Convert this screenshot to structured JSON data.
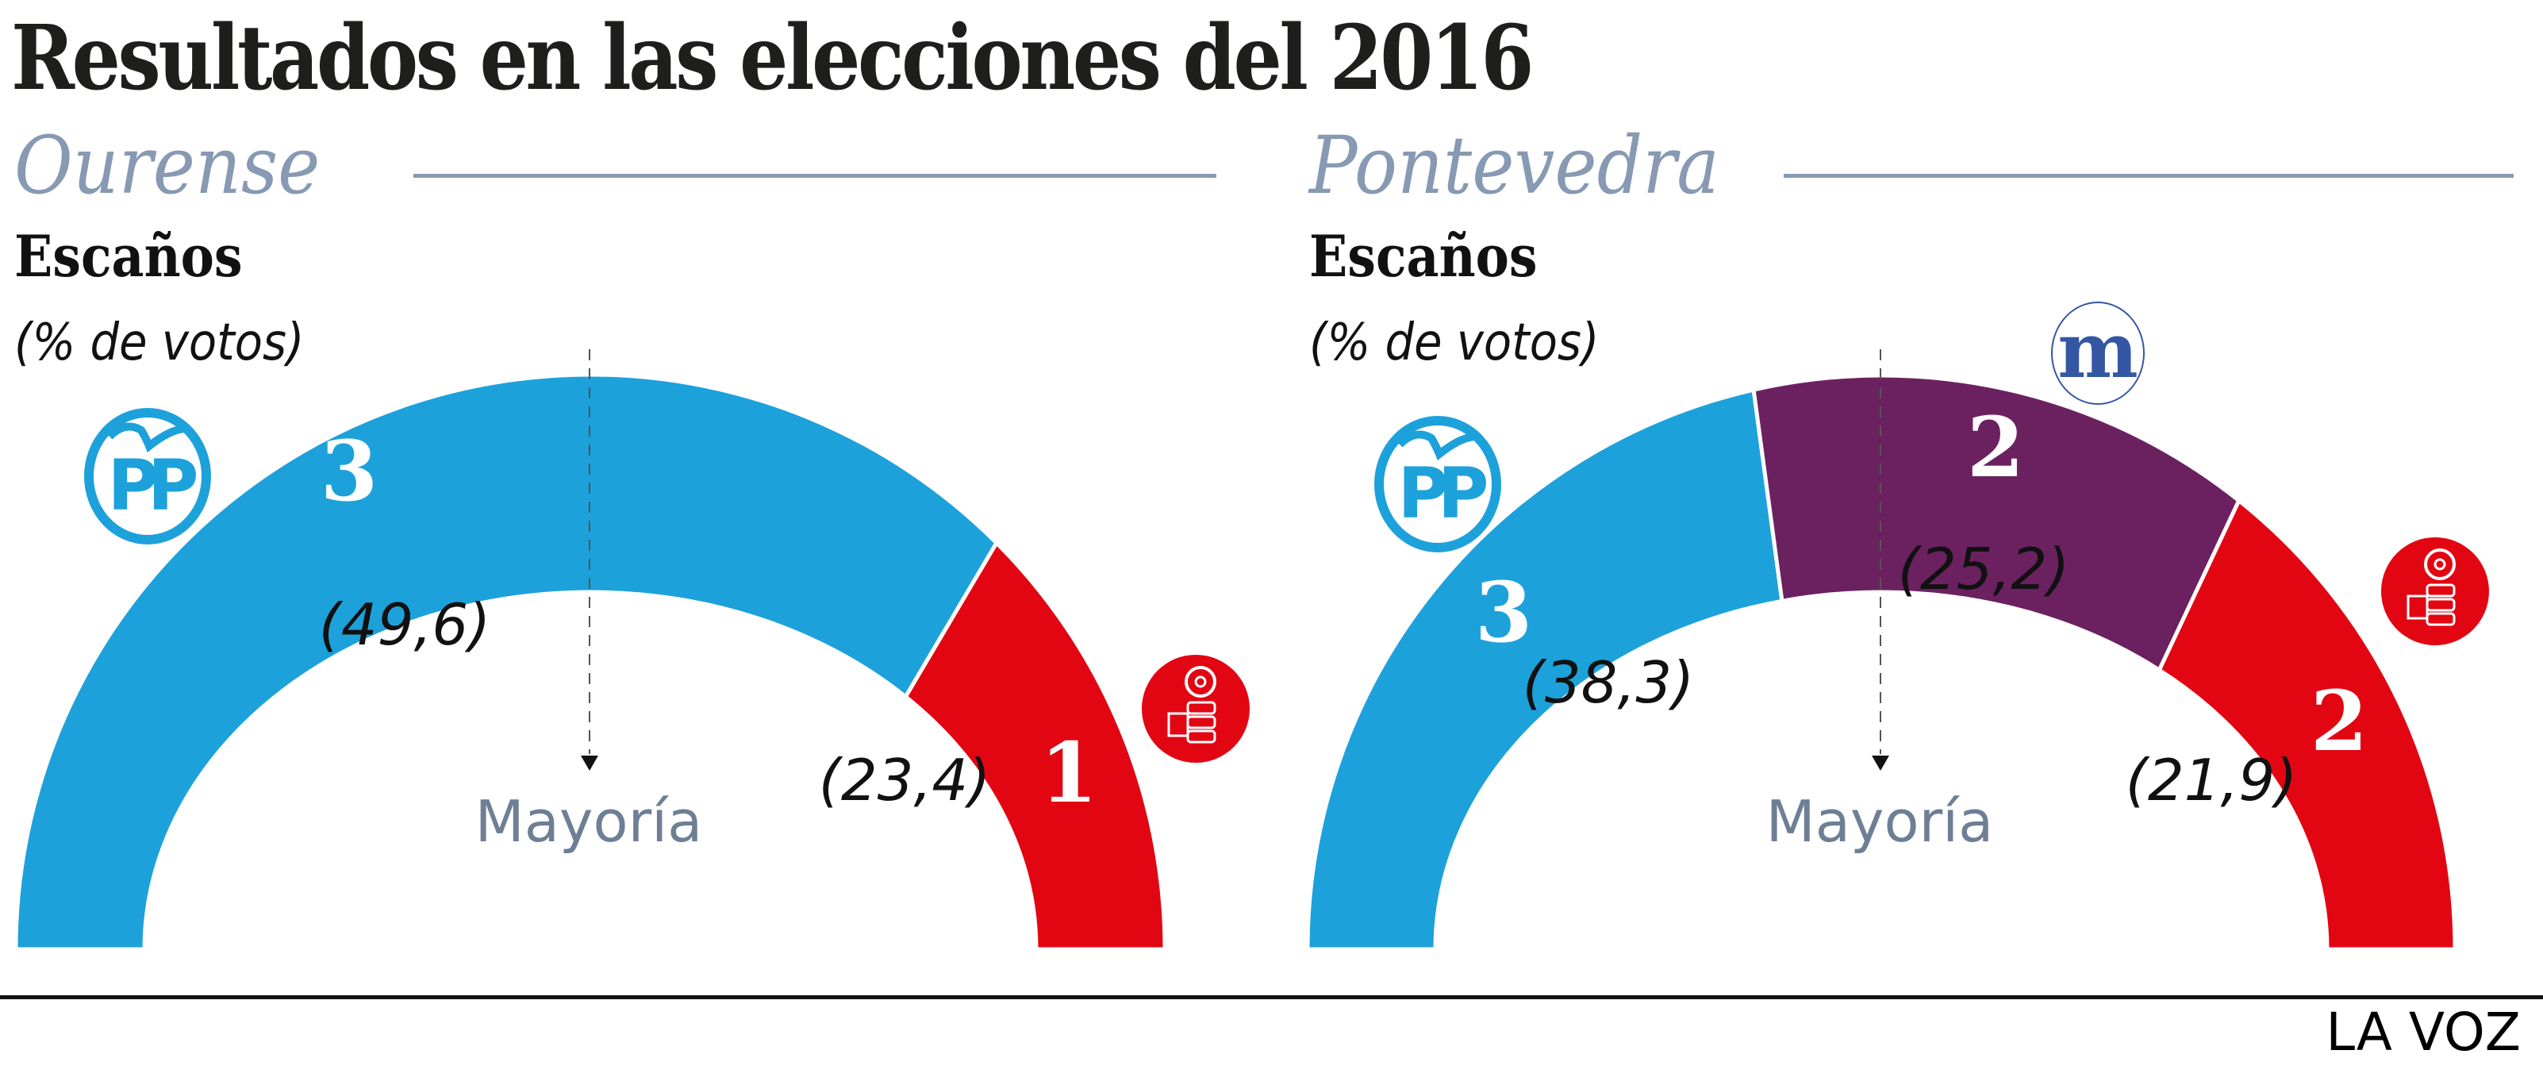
{
  "title": "Resultados en las elecciones del 2016",
  "source": "LA VOZ",
  "colors": {
    "PP": "#1da1db",
    "En Marea": "#6b2160",
    "PSOE": "#e20613",
    "region_heading": "#8799b3",
    "majority_label": "#6e7f95"
  },
  "chart_data": [
    {
      "type": "pie",
      "subtype": "half-donut (parliament seats)",
      "region": "Ourense",
      "title": "Ourense",
      "subtitle": "Escaños",
      "value_note": "(% de votos)",
      "majority_label": "Mayoría",
      "total_seats": 4,
      "series": [
        {
          "name": "PP",
          "seats": 3,
          "vote_pct": 49.6,
          "vote_label": "(49,6)",
          "logo": "pp-logo-icon"
        },
        {
          "name": "PSOE",
          "seats": 1,
          "vote_pct": 23.4,
          "vote_label": "(23,4)",
          "logo": "psoe-rose-fist-icon"
        }
      ]
    },
    {
      "type": "pie",
      "subtype": "half-donut (parliament seats)",
      "region": "Pontevedra",
      "title": "Pontevedra",
      "subtitle": "Escaños",
      "value_note": "(% de votos)",
      "majority_label": "Mayoría",
      "total_seats": 7,
      "series": [
        {
          "name": "PP",
          "seats": 3,
          "vote_pct": 38.3,
          "vote_label": "(38,3)",
          "logo": "pp-logo-icon"
        },
        {
          "name": "En Marea",
          "seats": 2,
          "vote_pct": 25.2,
          "vote_label": "(25,2)",
          "logo": "en-marea-m-icon"
        },
        {
          "name": "PSOE",
          "seats": 2,
          "vote_pct": 21.9,
          "vote_label": "(21,9)",
          "logo": "psoe-rose-fist-icon"
        }
      ]
    }
  ]
}
